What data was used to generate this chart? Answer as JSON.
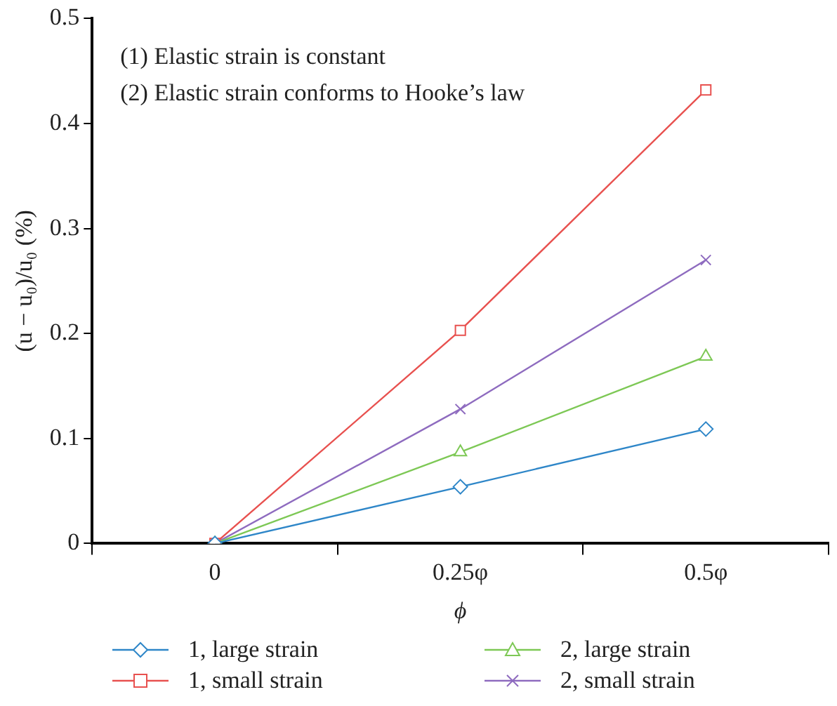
{
  "chart_data": {
    "type": "line",
    "xlabel": "ϕ",
    "ylabel": "(u − u₀)/u₀ (%)",
    "categories": [
      "0",
      "0.25φ",
      "0.5φ"
    ],
    "series": [
      {
        "name": "1, large strain",
        "color": "#2e86c8",
        "marker": "diamond",
        "values": [
          0,
          0.054,
          0.109
        ]
      },
      {
        "name": "1, small strain",
        "color": "#e8514f",
        "marker": "square",
        "values": [
          0,
          0.203,
          0.432
        ]
      },
      {
        "name": "2, large strain",
        "color": "#7dc855",
        "marker": "triangle",
        "values": [
          0,
          0.087,
          0.178
        ]
      },
      {
        "name": "2, small strain",
        "color": "#8e6bbf",
        "marker": "cross",
        "values": [
          0,
          0.128,
          0.27
        ]
      }
    ],
    "ylim": [
      0,
      0.5
    ],
    "yticks": [
      0,
      0.1,
      0.2,
      0.3,
      0.4,
      0.5
    ],
    "grid": false,
    "legend": "bottom",
    "annotations": [
      "(1) Elastic strain is constant",
      "(2) Elastic strain conforms to Hooke’s law"
    ]
  }
}
